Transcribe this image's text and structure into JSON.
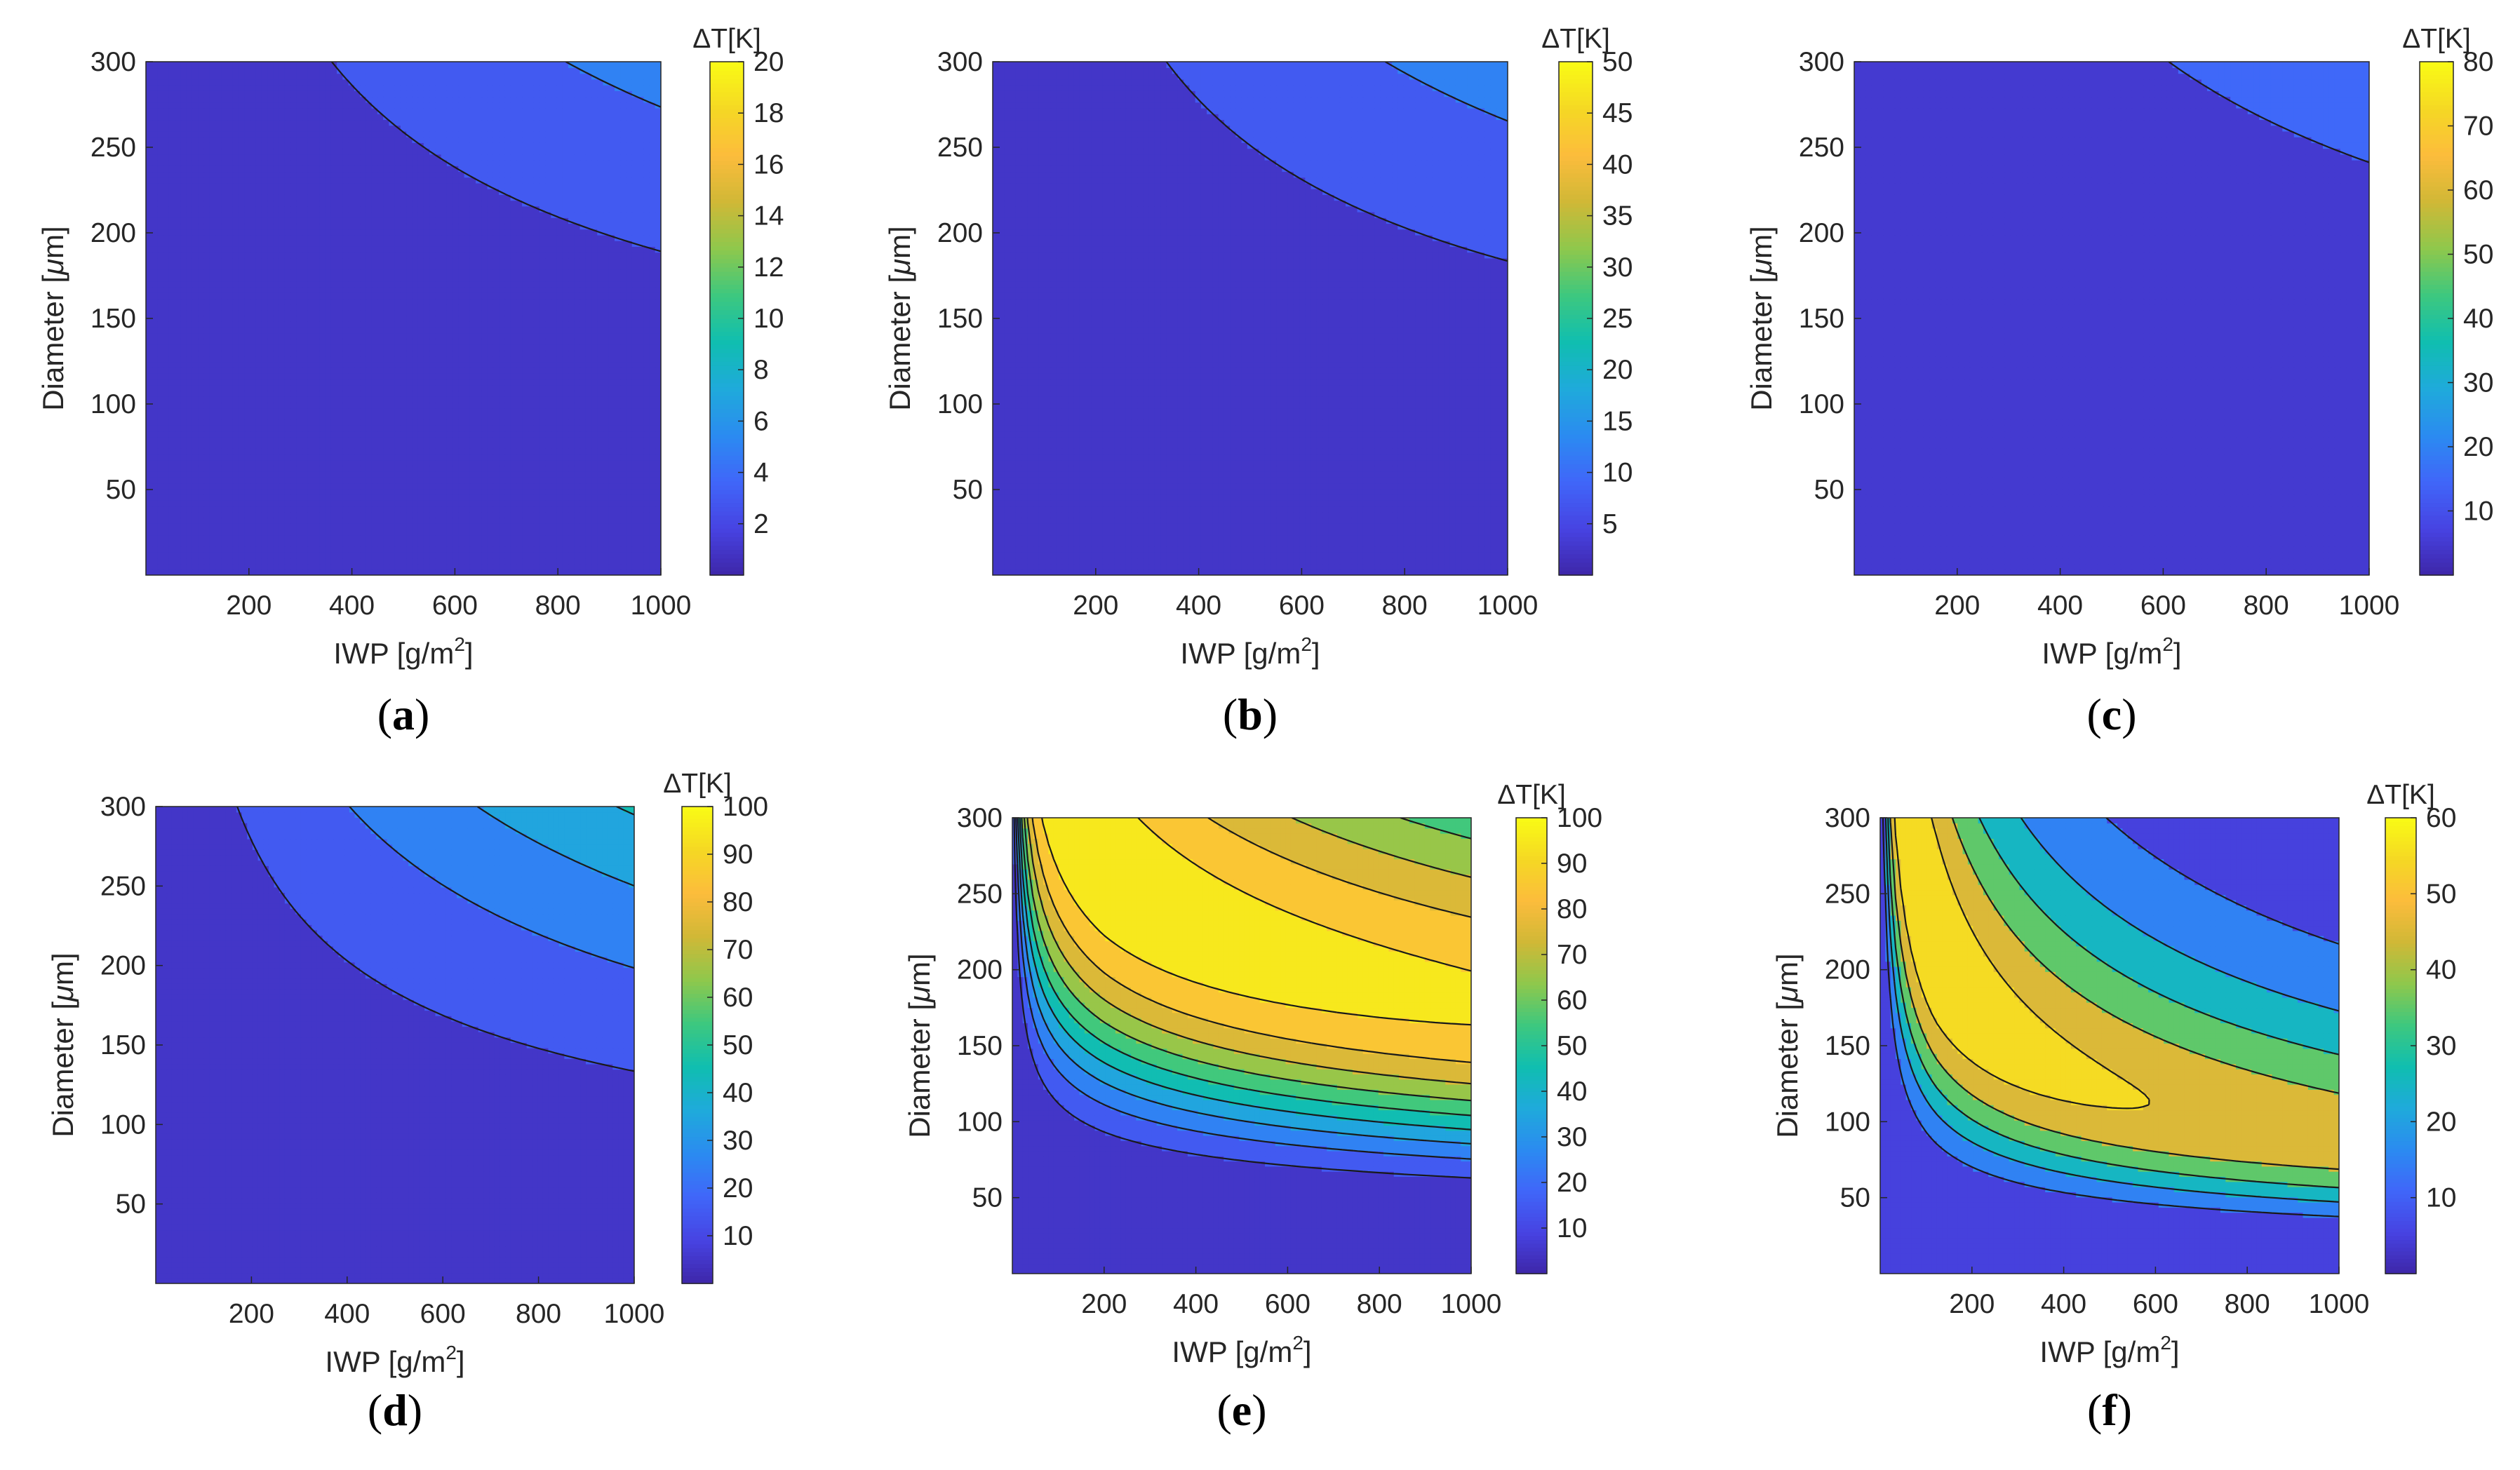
{
  "colors": {
    "palette": [
      "#3e26a8",
      "#4743e2",
      "#4066f9",
      "#2b8bf1",
      "#1faadb",
      "#10beb0",
      "#3dc87f",
      "#8ec84c",
      "#d0b836",
      "#fcbc3c",
      "#f5d824",
      "#f9fb15"
    ],
    "contour_line": "#1a1a1a",
    "axis": "#262626"
  },
  "chart_data": [
    {
      "id": "a",
      "caption": "a",
      "type": "heatmap",
      "title": "",
      "xlabel": "IWP [g/m",
      "xlabel_sup": "2",
      "xlabel_end": "]",
      "ylabel": "Diameter [",
      "ylabel_mu": "μ",
      "ylabel_end": "m]",
      "xlim": [
        0,
        1000
      ],
      "ylim": [
        0,
        300
      ],
      "xticks": [
        200,
        400,
        600,
        800,
        1000
      ],
      "yticks": [
        50,
        100,
        150,
        200,
        250,
        300
      ],
      "colorbar": {
        "title": "ΔT[K]",
        "min": 0,
        "max": 20,
        "ticks": [
          2,
          4,
          6,
          8,
          10,
          12,
          14,
          16,
          18,
          20
        ]
      },
      "contour_levels": [
        2,
        4,
        6,
        8,
        10,
        12,
        14,
        16,
        18
      ],
      "zmax": 20,
      "model": {
        "kind": "mono",
        "C": 0.00017,
        "alpha": 0.85,
        "beta": 1.88
      }
    },
    {
      "id": "b",
      "caption": "b",
      "type": "heatmap",
      "title": "",
      "xlabel": "IWP [g/m",
      "xlabel_sup": "2",
      "xlabel_end": "]",
      "ylabel": "Diameter [",
      "ylabel_mu": "μ",
      "ylabel_end": "m]",
      "xlim": [
        0,
        1000
      ],
      "ylim": [
        0,
        300
      ],
      "xticks": [
        200,
        400,
        600,
        800,
        1000
      ],
      "yticks": [
        50,
        100,
        150,
        200,
        250,
        300
      ],
      "colorbar": {
        "title": "ΔT[K]",
        "min": 0,
        "max": 50,
        "ticks": [
          5,
          10,
          15,
          20,
          25,
          30,
          35,
          40,
          45,
          50
        ]
      },
      "contour_levels": [
        5,
        10,
        15,
        20,
        25,
        30,
        35,
        40,
        45
      ],
      "zmax": 50,
      "model": {
        "kind": "mono",
        "C": 0.00045,
        "alpha": 0.85,
        "beta": 1.88
      }
    },
    {
      "id": "c",
      "caption": "c",
      "type": "heatmap",
      "title": "",
      "xlabel": "IWP [g/m",
      "xlabel_sup": "2",
      "xlabel_end": "]",
      "ylabel": "Diameter [",
      "ylabel_mu": "μ",
      "ylabel_end": "m]",
      "xlim": [
        0,
        1000
      ],
      "ylim": [
        0,
        300
      ],
      "xticks": [
        200,
        400,
        600,
        800,
        1000
      ],
      "yticks": [
        50,
        100,
        150,
        200,
        250,
        300
      ],
      "colorbar": {
        "title": "ΔT[K]",
        "min": 0,
        "max": 80,
        "ticks": [
          10,
          20,
          30,
          40,
          50,
          60,
          70,
          80
        ]
      },
      "contour_levels": [
        10,
        20,
        30,
        40,
        50,
        60,
        70
      ],
      "zmax": 80,
      "model": {
        "kind": "mono",
        "C": 0.00052,
        "alpha": 0.85,
        "beta": 1.92
      }
    },
    {
      "id": "d",
      "caption": "d",
      "type": "heatmap",
      "title": "",
      "xlabel": "IWP [g/m",
      "xlabel_sup": "2",
      "xlabel_end": "]",
      "ylabel": "Diameter [",
      "ylabel_mu": "μ",
      "ylabel_end": "m]",
      "xlim": [
        0,
        1000
      ],
      "ylim": [
        0,
        300
      ],
      "xticks": [
        200,
        400,
        600,
        800,
        1000
      ],
      "yticks": [
        50,
        100,
        150,
        200,
        250,
        300
      ],
      "colorbar": {
        "title": "ΔT[K]",
        "min": 0,
        "max": 100,
        "ticks": [
          10,
          20,
          30,
          40,
          50,
          60,
          70,
          80,
          90,
          100
        ]
      },
      "contour_levels": [
        10,
        20,
        30,
        40,
        50,
        60,
        70,
        80,
        90
      ],
      "zmax": 100,
      "model": {
        "kind": "mono",
        "C": 0.0024,
        "alpha": 0.8,
        "beta": 1.75
      }
    },
    {
      "id": "e",
      "caption": "e",
      "type": "heatmap",
      "title": "",
      "xlabel": "IWP [g/m",
      "xlabel_sup": "2",
      "xlabel_end": "]",
      "ylabel": "Diameter [",
      "ylabel_mu": "μ",
      "ylabel_end": "m]",
      "xlim": [
        0,
        1000
      ],
      "ylim": [
        0,
        300
      ],
      "xticks": [
        200,
        400,
        600,
        800,
        1000
      ],
      "yticks": [
        50,
        100,
        150,
        200,
        250,
        300
      ],
      "colorbar": {
        "title": "ΔT[K]",
        "min": 0,
        "max": 100,
        "ticks": [
          10,
          20,
          30,
          40,
          50,
          60,
          70,
          80,
          90,
          100
        ]
      },
      "contour_levels": [
        10,
        20,
        30,
        40,
        50,
        60,
        70,
        80,
        90
      ],
      "zmax": 100,
      "model": {
        "kind": "peak",
        "A": 97,
        "peak_diameter": 270,
        "peak_iwp": 200,
        "k": 0.25,
        "ax": 0.56,
        "bx": 0.07,
        "q": 0.9,
        "sw": 3.0,
        "sigma": 0.5
      }
    },
    {
      "id": "f",
      "caption": "f",
      "type": "heatmap",
      "title": "",
      "xlabel": "IWP [g/m",
      "xlabel_sup": "2",
      "xlabel_end": "]",
      "ylabel": "Diameter [",
      "ylabel_mu": "μ",
      "ylabel_end": "m]",
      "xlim": [
        0,
        1000
      ],
      "ylim": [
        0,
        300
      ],
      "xticks": [
        200,
        400,
        600,
        800,
        1000
      ],
      "yticks": [
        50,
        100,
        150,
        200,
        250,
        300
      ],
      "colorbar": {
        "title": "ΔT[K]",
        "min": 0,
        "max": 60,
        "ticks": [
          10,
          20,
          30,
          40,
          50,
          60
        ]
      },
      "contour_levels": [
        10,
        20,
        30,
        40,
        50
      ],
      "zmax": 60,
      "model": {
        "kind": "peak",
        "A": 58.5,
        "peak_diameter": 220,
        "peak_iwp": 120,
        "k": 0.42,
        "ax": 0.35,
        "bx": 0.4,
        "q": 0.85,
        "sw": 2.6,
        "sigma": 0.5
      }
    }
  ]
}
